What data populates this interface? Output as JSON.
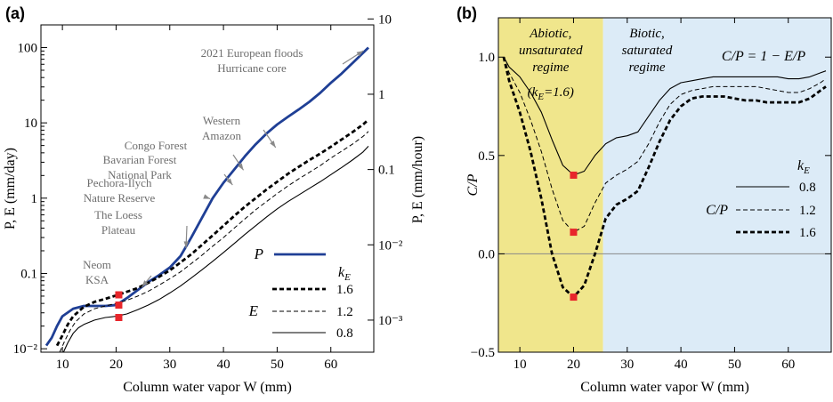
{
  "chart_data": [
    {
      "panel": "(a)",
      "type": "line",
      "xlabel": "Column water vapor W (mm)",
      "ylabel_left": "P, E (mm/day)",
      "ylabel_right": "P, E (mm/hour)",
      "xlim": [
        6,
        68
      ],
      "ylim": [
        0.009,
        200
      ],
      "yscale": "log",
      "xticks": [
        10,
        20,
        30,
        40,
        50,
        60
      ],
      "yticks_left": [
        {
          "v": 0.01,
          "label": "10⁻²"
        },
        {
          "v": 0.1,
          "label": "0.1"
        },
        {
          "v": 1,
          "label": "1"
        },
        {
          "v": 10,
          "label": "10"
        },
        {
          "v": 100,
          "label": "100"
        }
      ],
      "yticks_right": [
        {
          "v": 0.024,
          "label": "10⁻³"
        },
        {
          "v": 0.24,
          "label": "10⁻²"
        },
        {
          "v": 2.4,
          "label": "0.1"
        },
        {
          "v": 24,
          "label": "1"
        },
        {
          "v": 240,
          "label": "10"
        }
      ],
      "series": [
        {
          "name": "P",
          "color": "#1f3f95",
          "style": "solid-thick",
          "x": [
            7,
            8,
            9,
            10,
            12,
            14,
            16,
            18,
            20,
            22,
            24,
            26,
            28,
            30,
            32,
            34,
            36,
            38,
            40,
            42,
            44,
            46,
            48,
            50,
            52,
            54,
            56,
            58,
            60,
            62,
            64,
            66,
            67
          ],
          "y": [
            0.011,
            0.014,
            0.02,
            0.027,
            0.034,
            0.037,
            0.037,
            0.037,
            0.038,
            0.047,
            0.06,
            0.077,
            0.095,
            0.12,
            0.17,
            0.3,
            0.55,
            1.0,
            1.6,
            2.4,
            3.6,
            5.2,
            7.2,
            9.5,
            12,
            15,
            19,
            25,
            34,
            45,
            62,
            85,
            100
          ]
        },
        {
          "name": "1.6",
          "color": "#000000",
          "style": "thick-dash",
          "x": [
            9,
            10,
            11,
            12,
            14,
            16,
            18,
            20,
            22,
            24,
            26,
            28,
            30,
            32,
            34,
            36,
            38,
            40,
            42,
            44,
            46,
            48,
            50,
            52,
            54,
            56,
            58,
            60,
            62,
            64,
            66,
            67
          ],
          "y": [
            0.011,
            0.015,
            0.021,
            0.027,
            0.036,
            0.042,
            0.046,
            0.051,
            0.057,
            0.064,
            0.075,
            0.09,
            0.11,
            0.14,
            0.18,
            0.24,
            0.32,
            0.43,
            0.58,
            0.77,
            1.0,
            1.3,
            1.65,
            2.1,
            2.6,
            3.2,
            3.9,
            4.8,
            6.0,
            7.5,
            9.5,
            11
          ]
        },
        {
          "name": "1.2",
          "color": "#000000",
          "style": "thin-dash",
          "x": [
            9.5,
            10.5,
            11.5,
            12.5,
            14,
            16,
            18,
            20,
            22,
            24,
            26,
            28,
            30,
            32,
            34,
            36,
            38,
            40,
            42,
            44,
            46,
            48,
            50,
            52,
            54,
            56,
            58,
            60,
            62,
            64,
            66,
            67
          ],
          "y": [
            0.009,
            0.013,
            0.018,
            0.023,
            0.029,
            0.034,
            0.037,
            0.04,
            0.044,
            0.05,
            0.058,
            0.07,
            0.085,
            0.105,
            0.135,
            0.175,
            0.23,
            0.3,
            0.4,
            0.53,
            0.7,
            0.9,
            1.15,
            1.45,
            1.8,
            2.2,
            2.7,
            3.4,
            4.2,
            5.2,
            6.6,
            7.7
          ]
        },
        {
          "name": "0.8",
          "color": "#000000",
          "style": "solid-thin",
          "x": [
            10.2,
            11,
            12,
            13,
            14,
            16,
            18,
            20,
            22,
            24,
            26,
            28,
            30,
            32,
            34,
            36,
            38,
            40,
            42,
            44,
            46,
            48,
            50,
            52,
            54,
            56,
            58,
            60,
            62,
            64,
            66,
            67
          ],
          "y": [
            0.009,
            0.012,
            0.016,
            0.019,
            0.021,
            0.024,
            0.026,
            0.027,
            0.029,
            0.033,
            0.038,
            0.045,
            0.055,
            0.068,
            0.087,
            0.112,
            0.145,
            0.19,
            0.25,
            0.33,
            0.43,
            0.56,
            0.72,
            0.9,
            1.1,
            1.35,
            1.65,
            2.05,
            2.55,
            3.2,
            4.1,
            4.9
          ]
        }
      ],
      "markers": [
        {
          "x": 20.5,
          "y": 0.052
        },
        {
          "x": 20.5,
          "y": 0.038
        },
        {
          "x": 20.5,
          "y": 0.026
        }
      ],
      "annotations": [
        {
          "lines": [
            "2021 European floods",
            "Hurricane core"
          ],
          "arrow_to": [
            66.5,
            95
          ]
        },
        {
          "lines": [
            "Western",
            "Amazon"
          ],
          "arrow_to": [
            50,
            4.4
          ]
        },
        {
          "lines": [
            "Congo Forest"
          ],
          "arrow_to": [
            44,
            2.2
          ]
        },
        {
          "lines": [
            "Bavarian Forest",
            "National Park"
          ],
          "arrow_to": [
            42,
            1.4
          ]
        },
        {
          "lines": [
            "Pechora-Ilych",
            "Nature Reserve"
          ],
          "arrow_to": [
            38,
            0.95
          ]
        },
        {
          "lines": [
            "The Loess",
            "Plateau"
          ],
          "arrow_to": [
            33,
            0.2
          ]
        },
        {
          "lines": [
            "Neom",
            "KSA"
          ],
          "arrow_to": [
            24.5,
            0.062
          ]
        }
      ],
      "legend": {
        "p_label": "P",
        "e_label": "E",
        "k_label": "kE",
        "entries": [
          "1.6",
          "1.2",
          "0.8"
        ]
      }
    },
    {
      "panel": "(b)",
      "type": "line",
      "xlabel": "Column water vapor W (mm)",
      "ylabel": "C/P",
      "xlim": [
        6,
        68
      ],
      "ylim": [
        -0.5,
        1.2
      ],
      "xticks": [
        10,
        20,
        30,
        40,
        50,
        60
      ],
      "yticks": [
        {
          "v": -0.5,
          "label": "−0.5"
        },
        {
          "v": 0,
          "label": "0.0"
        },
        {
          "v": 0.5,
          "label": "0.5"
        },
        {
          "v": 1,
          "label": "1.0"
        }
      ],
      "regimes": [
        {
          "label_lines": [
            "Abiotic,",
            "unsaturated",
            "regime"
          ],
          "sublabel": "(kE=1.6)",
          "x_from": 6,
          "x_to": 25.5,
          "color": "#f0e68c"
        },
        {
          "label_lines": [
            "Biotic,",
            "saturated",
            "regime"
          ],
          "x_from": 25.5,
          "x_to": 68,
          "color": "#dcebf7"
        }
      ],
      "equation": "C/P = 1 − E/P",
      "series": [
        {
          "name": "0.8",
          "color": "#000000",
          "style": "solid-thin",
          "x": [
            7,
            8,
            10,
            12,
            14,
            16,
            18,
            20,
            22,
            24,
            26,
            28,
            30,
            32,
            34,
            36,
            38,
            40,
            42,
            44,
            46,
            48,
            50,
            52,
            54,
            56,
            58,
            60,
            62,
            64,
            66,
            67
          ],
          "y": [
            1.0,
            0.95,
            0.9,
            0.82,
            0.72,
            0.58,
            0.45,
            0.4,
            0.42,
            0.5,
            0.56,
            0.59,
            0.6,
            0.62,
            0.7,
            0.78,
            0.84,
            0.87,
            0.88,
            0.89,
            0.9,
            0.9,
            0.9,
            0.9,
            0.9,
            0.9,
            0.9,
            0.89,
            0.89,
            0.9,
            0.92,
            0.93
          ]
        },
        {
          "name": "1.2",
          "color": "#000000",
          "style": "thin-dash",
          "x": [
            7,
            8,
            10,
            12,
            14,
            16,
            18,
            20,
            22,
            24,
            26,
            28,
            30,
            32,
            34,
            36,
            38,
            40,
            42,
            44,
            46,
            48,
            50,
            52,
            54,
            56,
            58,
            60,
            62,
            64,
            66,
            67
          ],
          "y": [
            1.0,
            0.92,
            0.82,
            0.68,
            0.52,
            0.33,
            0.17,
            0.11,
            0.14,
            0.26,
            0.36,
            0.4,
            0.43,
            0.47,
            0.56,
            0.67,
            0.76,
            0.81,
            0.83,
            0.84,
            0.85,
            0.85,
            0.85,
            0.85,
            0.85,
            0.84,
            0.83,
            0.82,
            0.82,
            0.84,
            0.87,
            0.89
          ]
        },
        {
          "name": "1.6",
          "color": "#000000",
          "style": "thick-dash",
          "x": [
            7,
            8,
            10,
            12,
            14,
            16,
            18,
            20,
            22,
            24,
            26,
            28,
            30,
            32,
            34,
            36,
            38,
            40,
            42,
            44,
            46,
            48,
            50,
            52,
            54,
            56,
            58,
            60,
            62,
            64,
            66,
            67
          ],
          "y": [
            1.0,
            0.88,
            0.72,
            0.52,
            0.28,
            0.0,
            -0.17,
            -0.22,
            -0.16,
            0.0,
            0.18,
            0.25,
            0.28,
            0.32,
            0.44,
            0.57,
            0.68,
            0.75,
            0.79,
            0.8,
            0.8,
            0.8,
            0.79,
            0.78,
            0.78,
            0.77,
            0.77,
            0.77,
            0.77,
            0.79,
            0.83,
            0.85
          ]
        }
      ],
      "markers": [
        {
          "x": 20,
          "y": 0.4
        },
        {
          "x": 20,
          "y": 0.11
        },
        {
          "x": 20,
          "y": -0.22
        }
      ],
      "legend": {
        "k_label": "kE",
        "cp_label": "C/P",
        "entries": [
          "0.8",
          "1.2",
          "1.6"
        ]
      }
    }
  ]
}
